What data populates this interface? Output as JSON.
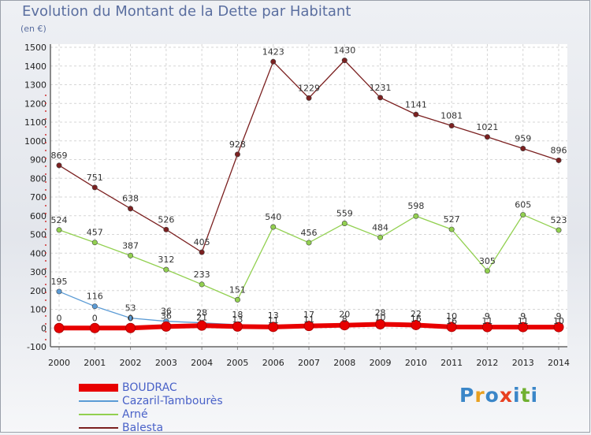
{
  "title": "Evolution du Montant de la Dette par Habitant",
  "unit": "(en €)",
  "logo": "Proxiti",
  "chart_data": {
    "type": "line",
    "title": "Evolution du Montant de la Dette par Habitant",
    "ylabel": "(en €)",
    "x": [
      2000,
      2001,
      2002,
      2003,
      2004,
      2005,
      2006,
      2007,
      2008,
      2009,
      2010,
      2011,
      2012,
      2013,
      2014
    ],
    "y_ticks": [
      -100,
      0,
      100,
      200,
      300,
      400,
      500,
      600,
      700,
      800,
      900,
      1000,
      1100,
      1200,
      1300,
      1400,
      1500
    ],
    "ylim": [
      -100,
      1500
    ],
    "grid": true,
    "legend": "bottom-left",
    "series": [
      {
        "name": "BOUDRAC",
        "color": "#e80000",
        "values": [
          0,
          0,
          0,
          8,
          13,
          8,
          6,
          11,
          15,
          20,
          16,
          6,
          5,
          5,
          5
        ]
      },
      {
        "name": "Cazaril-Tambourès",
        "color": "#5b9bd5",
        "values": [
          195,
          116,
          53,
          36,
          28,
          18,
          13,
          17,
          20,
          28,
          22,
          10,
          9,
          9,
          9
        ]
      },
      {
        "name": "Arné",
        "color": "#92d050",
        "values": [
          524,
          457,
          387,
          312,
          233,
          151,
          540,
          456,
          559,
          484,
          598,
          527,
          305,
          605,
          523
        ]
      },
      {
        "name": "Balesta",
        "color": "#7b2020",
        "values": [
          869,
          751,
          638,
          526,
          405,
          928,
          1423,
          1229,
          1430,
          1231,
          1141,
          1081,
          1021,
          959,
          896
        ]
      }
    ],
    "point_labels": [
      [
        "0",
        "0",
        "0",
        "",
        "",
        "",
        "",
        "",
        "",
        "",
        "",
        "",
        "",
        "",
        ""
      ],
      [
        "195",
        "116",
        "53",
        "36",
        "28",
        "18",
        "13",
        "17",
        "20",
        "28",
        "22",
        "10",
        "9",
        "9",
        "9"
      ],
      [
        "524",
        "457",
        "387",
        "312",
        "233",
        "151",
        "540",
        "456",
        "559",
        "484",
        "598",
        "527",
        "305",
        "605",
        "523"
      ],
      [
        "869",
        "751",
        "638",
        "526",
        "405",
        "928",
        "1423",
        "1229",
        "1430",
        "1231",
        "1141",
        "1081",
        "1021",
        "959",
        "896"
      ]
    ],
    "extra_labels": [
      {
        "x": 2003,
        "y": 36,
        "text": "36"
      },
      {
        "x": 2004,
        "y": 28,
        "text": "21"
      },
      {
        "x": 2005,
        "y": 18,
        "text": "13"
      },
      {
        "x": 2006,
        "y": 13,
        "text": "11"
      },
      {
        "x": 2007,
        "y": 17,
        "text": "11"
      },
      {
        "x": 2008,
        "y": 20,
        "text": "8"
      },
      {
        "x": 2009,
        "y": 28,
        "text": "10"
      },
      {
        "x": 2010,
        "y": 22,
        "text": "16"
      },
      {
        "x": 2011,
        "y": 10,
        "text": "16"
      },
      {
        "x": 2012,
        "y": 9,
        "text": "11"
      },
      {
        "x": 2013,
        "y": 9,
        "text": "11"
      },
      {
        "x": 2014,
        "y": 9,
        "text": "10"
      }
    ]
  }
}
